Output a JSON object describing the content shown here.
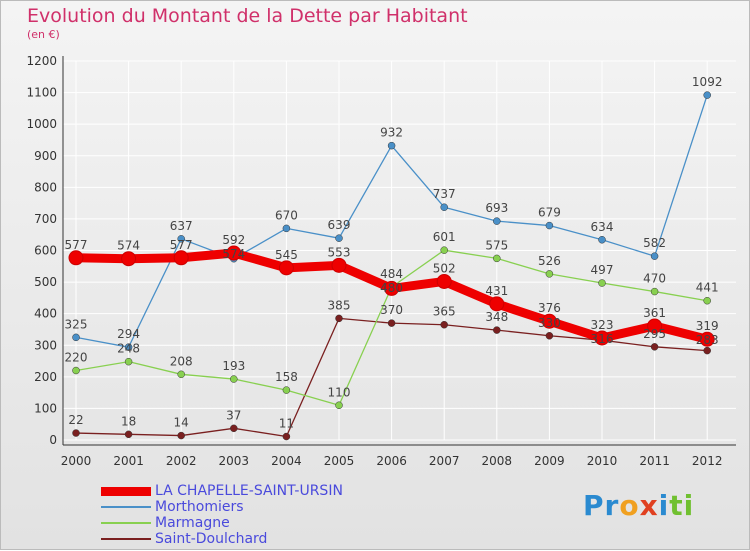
{
  "chart_data": {
    "type": "line",
    "title": "Evolution du Montant de la Dette par Habitant",
    "subtitle": "(en €)",
    "x": [
      "2000",
      "2001",
      "2002",
      "2003",
      "2004",
      "2005",
      "2006",
      "2007",
      "2008",
      "2009",
      "2010",
      "2011",
      "2012"
    ],
    "ylim": [
      0,
      1200
    ],
    "yticks": [
      0,
      100,
      200,
      300,
      400,
      500,
      600,
      700,
      800,
      900,
      1000,
      1100,
      1200
    ],
    "grid": true,
    "legend": "bottom-left",
    "series": [
      {
        "name": "LA CHAPELLE-SAINT-URSIN",
        "color": "#ee0000",
        "values": [
          577,
          574,
          577,
          592,
          545,
          553,
          480,
          502,
          431,
          376,
          323,
          361,
          319
        ]
      },
      {
        "name": "Morthomiers",
        "color": "#4a90c8",
        "values": [
          325,
          294,
          637,
          574,
          670,
          639,
          932,
          737,
          693,
          679,
          634,
          582,
          1092
        ]
      },
      {
        "name": "Marmagne",
        "color": "#88d050",
        "values": [
          220,
          248,
          208,
          193,
          158,
          110,
          484,
          601,
          575,
          526,
          497,
          470,
          441
        ]
      },
      {
        "name": "Saint-Doulchard",
        "color": "#7a2020",
        "values": [
          22,
          18,
          14,
          37,
          11,
          385,
          370,
          365,
          348,
          330,
          316,
          295,
          283
        ]
      }
    ]
  },
  "logo": "Proxiti"
}
